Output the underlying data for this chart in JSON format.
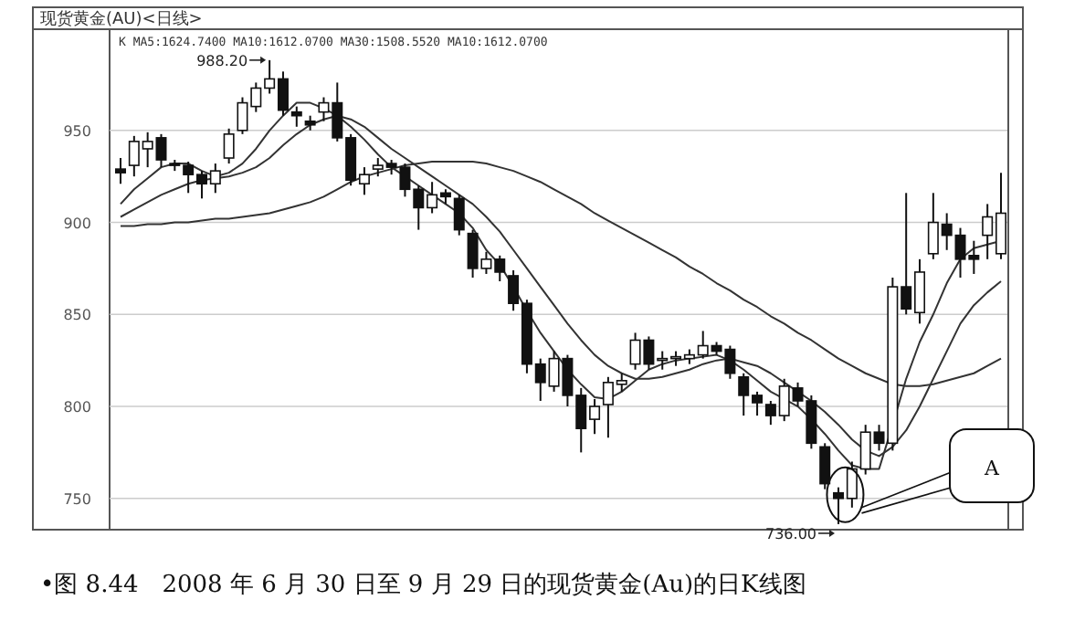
{
  "chart_data": {
    "type": "candlestick",
    "title": "现货黄金(AU)<日线>",
    "categories": [
      null,
      null,
      null,
      null,
      null,
      null,
      null,
      null,
      null,
      null,
      null,
      null,
      null,
      null,
      null,
      null,
      null,
      null,
      null,
      null,
      null,
      null,
      null,
      null,
      null,
      null,
      null,
      null,
      null,
      null,
      null,
      null,
      null,
      null,
      null,
      null,
      null,
      null,
      null,
      null,
      null,
      null,
      null,
      null,
      null,
      null,
      null,
      null,
      null,
      null,
      null,
      null,
      null,
      null,
      null,
      null,
      null,
      null,
      null,
      null,
      null,
      null,
      null,
      null,
      null,
      null
    ],
    "ohlc": [
      [
        929,
        935,
        921,
        927
      ],
      [
        931,
        947,
        925,
        944
      ],
      [
        940,
        949,
        930,
        944
      ],
      [
        946,
        948,
        930,
        934
      ],
      [
        932,
        934,
        928,
        931
      ],
      [
        931,
        933,
        916,
        926
      ],
      [
        926,
        928,
        913,
        921
      ],
      [
        921,
        932,
        916,
        928
      ],
      [
        935,
        951,
        932,
        948
      ],
      [
        950,
        968,
        948,
        965
      ],
      [
        963,
        976,
        960,
        973
      ],
      [
        973,
        988.2,
        970,
        978
      ],
      [
        978,
        982,
        958,
        961
      ],
      [
        960,
        963,
        952,
        958
      ],
      [
        955,
        958,
        950,
        953
      ],
      [
        960,
        968,
        955,
        965
      ],
      [
        965,
        976,
        944,
        946
      ],
      [
        946,
        948,
        920,
        923
      ],
      [
        921,
        930,
        915,
        926
      ],
      [
        929,
        935,
        925,
        931
      ],
      [
        932,
        934,
        926,
        930
      ],
      [
        930,
        932,
        914,
        918
      ],
      [
        918,
        920,
        896,
        908
      ],
      [
        908,
        922,
        905,
        915
      ],
      [
        916,
        918,
        910,
        914
      ],
      [
        913,
        915,
        893,
        896
      ],
      [
        894,
        896,
        870,
        875
      ],
      [
        875,
        884,
        872,
        880
      ],
      [
        880,
        882,
        868,
        873
      ],
      [
        871,
        874,
        852,
        856
      ],
      [
        856,
        858,
        818,
        823
      ],
      [
        823,
        826,
        803,
        813
      ],
      [
        811,
        830,
        808,
        826
      ],
      [
        826,
        828,
        800,
        806
      ],
      [
        806,
        810,
        775,
        788
      ],
      [
        793,
        804,
        785,
        800
      ],
      [
        801,
        816,
        783,
        813
      ],
      [
        812,
        818,
        808,
        814
      ],
      [
        823,
        840,
        820,
        836
      ],
      [
        836,
        838,
        820,
        823
      ],
      [
        825,
        830,
        820,
        826
      ],
      [
        826,
        830,
        822,
        827
      ],
      [
        826,
        831,
        823,
        828
      ],
      [
        828,
        841,
        826,
        833
      ],
      [
        833,
        835,
        828,
        830
      ],
      [
        831,
        833,
        815,
        818
      ],
      [
        816,
        818,
        795,
        806
      ],
      [
        806,
        808,
        795,
        802
      ],
      [
        801,
        803,
        790,
        795
      ],
      [
        795,
        815,
        792,
        811
      ],
      [
        810,
        813,
        800,
        803
      ],
      [
        803,
        806,
        777,
        780
      ],
      [
        778,
        780,
        755,
        758
      ],
      [
        753,
        756,
        736,
        750
      ],
      [
        750,
        770,
        745,
        766
      ],
      [
        766,
        790,
        763,
        786
      ],
      [
        786,
        790,
        776,
        780
      ],
      [
        780,
        870,
        776,
        865
      ],
      [
        865,
        916,
        850,
        853
      ],
      [
        851,
        880,
        845,
        873
      ],
      [
        883,
        916,
        880,
        900
      ],
      [
        899,
        905,
        885,
        893
      ],
      [
        893,
        897,
        870,
        880
      ],
      [
        882,
        890,
        872,
        880
      ],
      [
        893,
        910,
        880,
        903
      ],
      [
        883,
        927,
        880,
        905
      ]
    ],
    "series": [
      {
        "type": "line",
        "color": "#333333",
        "values": [
          910,
          918,
          924,
          930,
          932,
          932,
          928,
          925,
          927,
          932,
          940,
          950,
          958,
          965,
          965,
          962,
          958,
          952,
          945,
          937,
          930,
          925,
          920,
          915,
          910,
          905,
          897,
          885,
          877,
          865,
          852,
          840,
          830,
          820,
          812,
          805,
          804,
          808,
          814,
          820,
          823,
          825,
          826,
          827,
          828,
          825,
          820,
          814,
          808,
          804,
          800,
          793,
          785,
          776,
          768,
          766,
          766,
          790,
          815,
          835,
          850,
          867,
          880,
          886,
          888,
          890
        ]
      },
      {
        "type": "line",
        "color": "#333333",
        "values": [
          903,
          907,
          911,
          915,
          918,
          921,
          923,
          924,
          925,
          927,
          930,
          935,
          942,
          948,
          953,
          956,
          958,
          956,
          952,
          946,
          940,
          935,
          930,
          925,
          920,
          915,
          910,
          903,
          895,
          885,
          875,
          865,
          855,
          845,
          836,
          828,
          822,
          818,
          815,
          815,
          816,
          818,
          820,
          823,
          825,
          826,
          824,
          822,
          818,
          813,
          808,
          803,
          797,
          790,
          782,
          776,
          773,
          778,
          787,
          800,
          815,
          830,
          845,
          855,
          862,
          868
        ]
      },
      {
        "type": "line",
        "color": "#333333",
        "values": [
          898,
          898,
          899,
          899,
          900,
          900,
          901,
          902,
          902,
          903,
          904,
          905,
          907,
          909,
          911,
          914,
          918,
          922,
          925,
          927,
          929,
          931,
          932,
          933,
          933,
          933,
          933,
          932,
          930,
          928,
          925,
          922,
          918,
          914,
          910,
          905,
          901,
          897,
          893,
          889,
          885,
          881,
          876,
          872,
          867,
          863,
          858,
          854,
          849,
          845,
          840,
          836,
          831,
          826,
          822,
          818,
          815,
          812,
          811,
          811,
          812,
          814,
          816,
          818,
          822,
          826
        ]
      }
    ],
    "ylim": [
      733,
      1005
    ],
    "yticks": [
      750,
      800,
      850,
      900,
      950
    ],
    "grid": "y",
    "annotations": [
      "K  MA5:1624.7400  MA10:1612.0700  MA30:1508.5520  MA10:1612.0700",
      "988.20",
      "736.00",
      "A",
      "•图 8.44　2008 年 6 月 30 日至 9 月 29 日的现货黄金(Au)的日K线图"
    ]
  }
}
